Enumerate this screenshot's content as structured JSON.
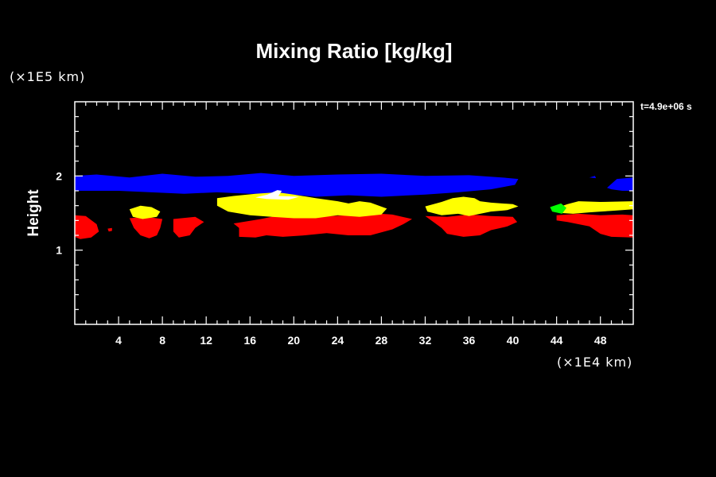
{
  "chart_data": {
    "type": "heatmap",
    "title": "Mixing Ratio [kg/kg]",
    "ylabel": "Height",
    "xlabel": "",
    "x_unit": "(×1E4 km)",
    "y_unit": "(×1E5 km)",
    "time_label": "t=4.9e+06 s",
    "xlim": [
      0,
      51
    ],
    "ylim": [
      0,
      3
    ],
    "x_ticks": [
      "4",
      "8",
      "12",
      "16",
      "20",
      "24",
      "28",
      "32",
      "36",
      "40",
      "44",
      "48"
    ],
    "x_tick_values": [
      4,
      8,
      12,
      16,
      20,
      24,
      28,
      32,
      36,
      40,
      44,
      48
    ],
    "y_ticks": [
      "1",
      "2"
    ],
    "y_tick_values": [
      1,
      2
    ],
    "grid": false,
    "colors": {
      "background": "#000000",
      "axes": "#ffffff",
      "blue": "#0000ff",
      "red": "#ff0000",
      "yellow": "#ffff00",
      "green": "#00ff00",
      "white": "#ffffff"
    },
    "regions": [
      {
        "name": "blue-layer-main",
        "color": "blue",
        "points": [
          [
            0,
            2.0
          ],
          [
            2,
            2.02
          ],
          [
            5,
            1.98
          ],
          [
            8,
            2.03
          ],
          [
            11,
            1.99
          ],
          [
            14,
            2.0
          ],
          [
            17,
            2.04
          ],
          [
            20,
            2.0
          ],
          [
            24,
            2.02
          ],
          [
            28,
            2.03
          ],
          [
            32,
            2.0
          ],
          [
            36,
            2.01
          ],
          [
            39,
            1.98
          ],
          [
            40.5,
            1.96
          ],
          [
            40.2,
            1.88
          ],
          [
            38,
            1.82
          ],
          [
            35,
            1.78
          ],
          [
            32,
            1.75
          ],
          [
            28,
            1.72
          ],
          [
            25,
            1.74
          ],
          [
            22,
            1.72
          ],
          [
            19,
            1.76
          ],
          [
            16,
            1.76
          ],
          [
            13,
            1.78
          ],
          [
            10,
            1.76
          ],
          [
            7,
            1.78
          ],
          [
            4,
            1.8
          ],
          [
            2,
            1.8
          ],
          [
            0,
            1.8
          ]
        ]
      },
      {
        "name": "blue-layer-right",
        "color": "blue",
        "points": [
          [
            48.6,
            1.84
          ],
          [
            49.5,
            1.96
          ],
          [
            51,
            1.98
          ],
          [
            51,
            1.8
          ],
          [
            50,
            1.8
          ],
          [
            49,
            1.82
          ]
        ]
      },
      {
        "name": "blue-speck",
        "color": "blue",
        "points": [
          [
            47,
            1.98
          ],
          [
            47.5,
            2.0
          ],
          [
            47.6,
            1.97
          ]
        ]
      },
      {
        "name": "red-left-1",
        "color": "red",
        "points": [
          [
            0,
            1.47
          ],
          [
            1,
            1.46
          ],
          [
            2,
            1.35
          ],
          [
            2.2,
            1.25
          ],
          [
            1.5,
            1.17
          ],
          [
            0.5,
            1.15
          ],
          [
            0,
            1.18
          ]
        ]
      },
      {
        "name": "red-left-speck",
        "color": "red",
        "points": [
          [
            3,
            1.29
          ],
          [
            3.4,
            1.3
          ],
          [
            3.4,
            1.26
          ],
          [
            3.1,
            1.25
          ]
        ]
      },
      {
        "name": "red-left-2",
        "color": "red",
        "points": [
          [
            5,
            1.43
          ],
          [
            6.5,
            1.45
          ],
          [
            8,
            1.42
          ],
          [
            7.8,
            1.3
          ],
          [
            7.5,
            1.2
          ],
          [
            6.8,
            1.16
          ],
          [
            6,
            1.2
          ],
          [
            5.4,
            1.3
          ]
        ]
      },
      {
        "name": "red-left-3",
        "color": "red",
        "points": [
          [
            9,
            1.42
          ],
          [
            11,
            1.45
          ],
          [
            11.8,
            1.38
          ],
          [
            11,
            1.3
          ],
          [
            10.5,
            1.2
          ],
          [
            9.5,
            1.17
          ],
          [
            9,
            1.25
          ]
        ]
      },
      {
        "name": "red-center",
        "color": "red",
        "points": [
          [
            14.5,
            1.36
          ],
          [
            17,
            1.42
          ],
          [
            19,
            1.48
          ],
          [
            22,
            1.45
          ],
          [
            25,
            1.47
          ],
          [
            27,
            1.5
          ],
          [
            29,
            1.48
          ],
          [
            30.8,
            1.42
          ],
          [
            30,
            1.35
          ],
          [
            29,
            1.28
          ],
          [
            27,
            1.2
          ],
          [
            25,
            1.2
          ],
          [
            23,
            1.23
          ],
          [
            21,
            1.2
          ],
          [
            19,
            1.18
          ],
          [
            17.5,
            1.2
          ],
          [
            16.5,
            1.17
          ],
          [
            15,
            1.18
          ],
          [
            15,
            1.3
          ]
        ]
      },
      {
        "name": "red-right-center",
        "color": "red",
        "points": [
          [
            32,
            1.46
          ],
          [
            34,
            1.45
          ],
          [
            36,
            1.48
          ],
          [
            38,
            1.46
          ],
          [
            40,
            1.45
          ],
          [
            40.4,
            1.38
          ],
          [
            39.5,
            1.32
          ],
          [
            38,
            1.27
          ],
          [
            37,
            1.2
          ],
          [
            35.5,
            1.18
          ],
          [
            34,
            1.22
          ],
          [
            33.5,
            1.3
          ]
        ]
      },
      {
        "name": "red-right",
        "color": "red",
        "points": [
          [
            44,
            1.47
          ],
          [
            46,
            1.49
          ],
          [
            48,
            1.47
          ],
          [
            50,
            1.48
          ],
          [
            51,
            1.47
          ],
          [
            51,
            1.17
          ],
          [
            49,
            1.18
          ],
          [
            48,
            1.22
          ],
          [
            47,
            1.32
          ],
          [
            45,
            1.38
          ],
          [
            44,
            1.4
          ]
        ]
      },
      {
        "name": "yellow-left",
        "color": "yellow",
        "points": [
          [
            5,
            1.55
          ],
          [
            6,
            1.6
          ],
          [
            7,
            1.58
          ],
          [
            7.8,
            1.52
          ],
          [
            7.5,
            1.45
          ],
          [
            6.2,
            1.42
          ],
          [
            5.3,
            1.45
          ]
        ]
      },
      {
        "name": "yellow-center",
        "color": "yellow",
        "points": [
          [
            13,
            1.7
          ],
          [
            14.5,
            1.73
          ],
          [
            16.5,
            1.76
          ],
          [
            18.5,
            1.78
          ],
          [
            20,
            1.75
          ],
          [
            22,
            1.7
          ],
          [
            24,
            1.66
          ],
          [
            25,
            1.63
          ],
          [
            26,
            1.66
          ],
          [
            27,
            1.64
          ],
          [
            28.5,
            1.56
          ],
          [
            28,
            1.48
          ],
          [
            26,
            1.45
          ],
          [
            24,
            1.47
          ],
          [
            22,
            1.43
          ],
          [
            20,
            1.43
          ],
          [
            18,
            1.45
          ],
          [
            16,
            1.47
          ],
          [
            14,
            1.52
          ],
          [
            13,
            1.6
          ]
        ]
      },
      {
        "name": "yellow-right-center",
        "color": "yellow",
        "points": [
          [
            32,
            1.59
          ],
          [
            33.5,
            1.65
          ],
          [
            34.5,
            1.7
          ],
          [
            35.5,
            1.72
          ],
          [
            36.5,
            1.7
          ],
          [
            37,
            1.66
          ],
          [
            38,
            1.64
          ],
          [
            40,
            1.62
          ],
          [
            40.5,
            1.59
          ],
          [
            39.5,
            1.54
          ],
          [
            38,
            1.52
          ],
          [
            36,
            1.46
          ],
          [
            35,
            1.49
          ],
          [
            33.5,
            1.47
          ],
          [
            32.2,
            1.52
          ]
        ]
      },
      {
        "name": "yellow-right",
        "color": "yellow",
        "points": [
          [
            44,
            1.57
          ],
          [
            45,
            1.62
          ],
          [
            46,
            1.66
          ],
          [
            48,
            1.65
          ],
          [
            51,
            1.66
          ],
          [
            51,
            1.55
          ],
          [
            49,
            1.53
          ],
          [
            47,
            1.51
          ],
          [
            45.5,
            1.49
          ],
          [
            44.5,
            1.5
          ]
        ]
      },
      {
        "name": "green-right",
        "color": "green",
        "points": [
          [
            43.4,
            1.58
          ],
          [
            44.4,
            1.63
          ],
          [
            44.9,
            1.57
          ],
          [
            44.5,
            1.49
          ],
          [
            43.6,
            1.52
          ]
        ]
      },
      {
        "name": "white-peak",
        "color": "white",
        "points": [
          [
            16.5,
            1.71
          ],
          [
            17.6,
            1.75
          ],
          [
            18.5,
            1.81
          ],
          [
            18.9,
            1.8
          ],
          [
            18.6,
            1.73
          ],
          [
            20.5,
            1.72
          ],
          [
            19.5,
            1.68
          ],
          [
            17.5,
            1.69
          ]
        ]
      }
    ]
  }
}
